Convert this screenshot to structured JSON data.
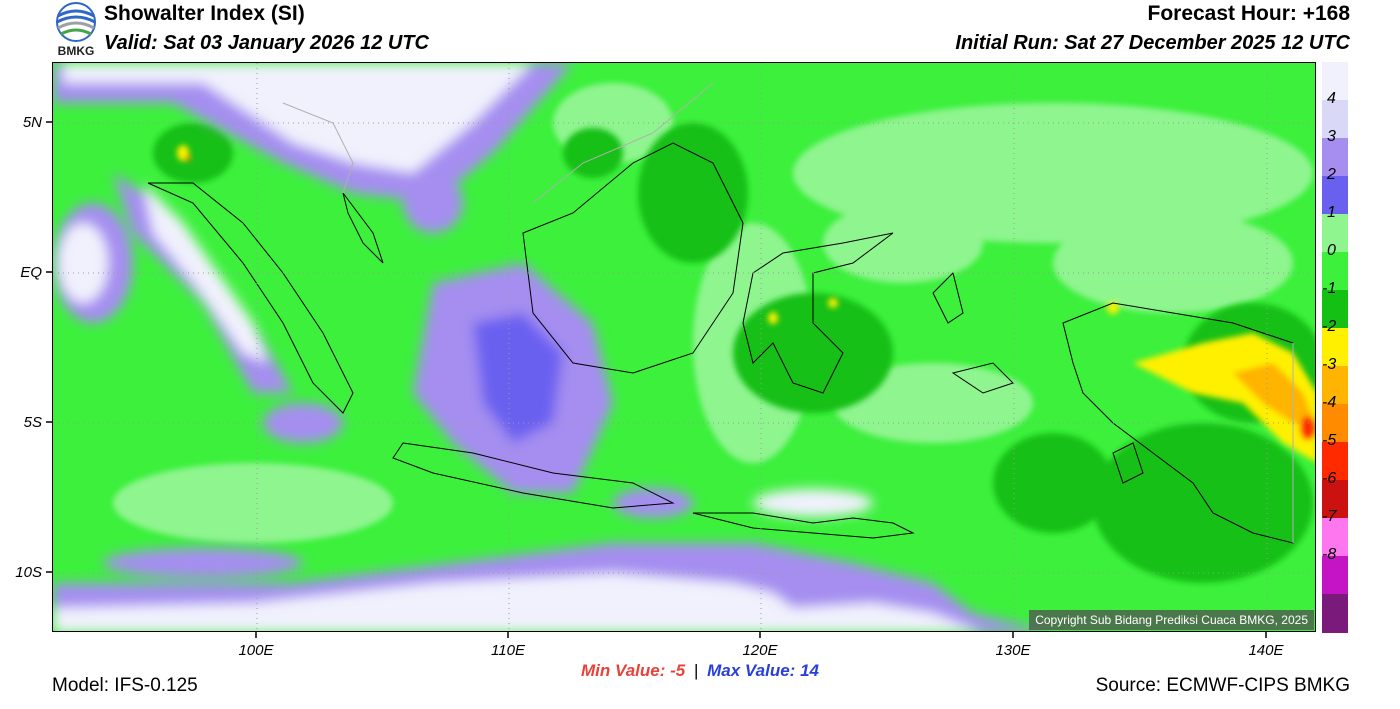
{
  "header": {
    "title": "Showalter Index (SI)",
    "valid": "Valid: Sat 03 January 2026 12 UTC",
    "forecast_hour": "Forecast Hour: +168",
    "initial_run": "Initial Run: Sat 27 December 2025 12 UTC"
  },
  "logo": {
    "text": "BMKG"
  },
  "map": {
    "lat_labels": [
      "5N",
      "EQ",
      "5S",
      "10S"
    ],
    "lon_labels": [
      "100E",
      "110E",
      "120E",
      "130E",
      "140E"
    ],
    "copyright": "Copyright Sub Bidang Prediksi Cuaca BMKG, 2025"
  },
  "stats": {
    "min_label": "Min Value:",
    "min_value": "-5",
    "separator": "|",
    "max_label": "Max Value:",
    "max_value": "14"
  },
  "footer": {
    "model": "Model: IFS-0.125",
    "source": "Source: ECMWF-CIPS BMKG"
  },
  "colorbar": {
    "labels": [
      "4",
      "3",
      "2",
      "1",
      "0",
      "-1",
      "-2",
      "-3",
      "-4",
      "-5",
      "-6",
      "-7",
      "-8"
    ],
    "colors": [
      "#f1f1fd",
      "#d9d9f7",
      "#a58ef0",
      "#6a60f0",
      "#8ff58f",
      "#3cf03c",
      "#13c013",
      "#fff000",
      "#ffb400",
      "#ff8c00",
      "#ff2a00",
      "#cc1111",
      "#ff77ee",
      "#c414c4",
      "#7a1a7a"
    ]
  }
}
